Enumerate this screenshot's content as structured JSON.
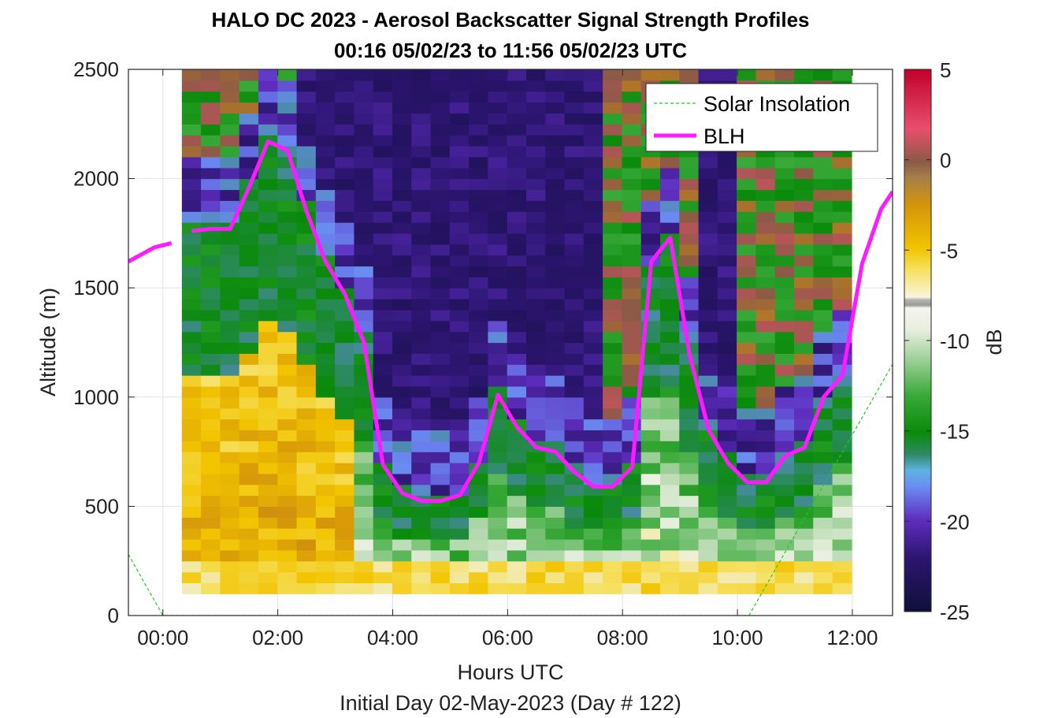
{
  "chart_data": {
    "type": "heatmap",
    "title": "HALO DC 2023 - Aerosol Backscatter Signal Strength Profiles",
    "subtitle": "00:16 05/02/23 to 11:56 05/02/23  UTC",
    "xlabel": "Hours UTC",
    "xlabel2": "Initial Day 02-May-2023 (Day # 122)",
    "ylabel": "Altitude (m)",
    "colorbar_label": "dB",
    "xlim": [
      -0.6,
      12.7
    ],
    "ylim": [
      0,
      2500
    ],
    "x_ticks": [
      0,
      2,
      4,
      6,
      8,
      10,
      12
    ],
    "x_tick_labels": [
      "00:00",
      "02:00",
      "04:00",
      "06:00",
      "08:00",
      "10:00",
      "12:00"
    ],
    "y_ticks": [
      0,
      500,
      1000,
      1500,
      2000,
      2500
    ],
    "y_tick_labels": [
      "0",
      "500",
      "1000",
      "1500",
      "2000",
      "2500"
    ],
    "colorbar_range": [
      -25,
      5
    ],
    "colorbar_ticks": [
      5,
      0,
      -5,
      -10,
      -15,
      -20,
      -25
    ],
    "colorbar_tick_labels": [
      "5",
      "0",
      "-5",
      "-10",
      "-15",
      "-20",
      "-25"
    ],
    "grid": true,
    "legend_position": "top-right",
    "heatmap_profile_step_hours": 0.333,
    "heatmap_altitude_range": [
      100,
      2500
    ],
    "heatmap_altitude_step_m": 50,
    "heatmap_time_range": [
      0.33,
      11.95
    ],
    "series": [
      {
        "name": "Solar Insolation",
        "style": "dashed",
        "color": "#22c822",
        "x": [
          -0.6,
          0.0,
          10.2,
          12.7
        ],
        "y": [
          280,
          0,
          0,
          1150
        ]
      },
      {
        "name": "BLH",
        "style": "solid",
        "color": "#ff1aff",
        "segments": [
          {
            "x": [
              -0.6,
              -0.15,
              0.15
            ],
            "y": [
              1620,
              1685,
              1705
            ]
          },
          {
            "x": [
              0.5,
              0.83,
              1.17,
              1.5,
              1.83,
              2.17,
              2.5,
              2.83,
              3.17,
              3.5,
              3.83,
              4.17,
              4.5,
              4.83,
              5.17,
              5.5,
              5.83,
              6.17,
              6.5,
              6.83,
              7.17,
              7.5,
              7.83,
              8.17,
              8.5,
              8.83,
              9.17,
              9.5,
              9.83,
              10.17,
              10.5,
              10.83,
              11.17,
              11.5,
              11.83,
              12.17,
              12.5,
              12.7
            ],
            "y": [
              1760,
              1770,
              1770,
              1960,
              2170,
              2130,
              1850,
              1620,
              1470,
              1250,
              690,
              560,
              525,
              525,
              550,
              700,
              1010,
              860,
              770,
              750,
              655,
              590,
              590,
              680,
              1620,
              1730,
              1190,
              850,
              700,
              610,
              610,
              730,
              770,
              1000,
              1100,
              1610,
              1860,
              1940
            ]
          }
        ]
      }
    ]
  }
}
